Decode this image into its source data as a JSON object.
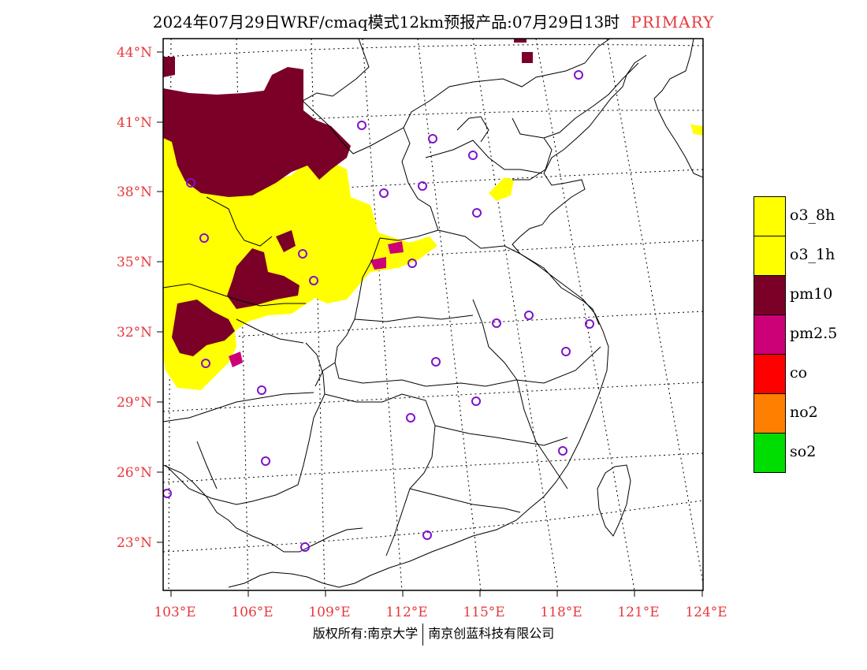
{
  "header": {
    "title": "2024年07月29日WRF/cmaq模式12km预报产品:07月29日13时",
    "tag": "PRIMARY"
  },
  "map": {
    "lat_labels": [
      "44°N",
      "41°N",
      "38°N",
      "35°N",
      "32°N",
      "29°N",
      "26°N",
      "23°N"
    ],
    "lon_labels": [
      "103°E",
      "106°E",
      "109°E",
      "112°E",
      "115°E",
      "118°E",
      "121°E",
      "124°E"
    ]
  },
  "legend": {
    "items": [
      {
        "label": "o3_8h",
        "color": "#ffff00"
      },
      {
        "label": "o3_1h",
        "color": "#ffff00"
      },
      {
        "label": "pm10",
        "color": "#7a0028"
      },
      {
        "label": "pm2.5",
        "color": "#cc0077"
      },
      {
        "label": "co",
        "color": "#ff0000"
      },
      {
        "label": "no2",
        "color": "#ff8000"
      },
      {
        "label": "so2",
        "color": "#00dd00"
      }
    ]
  },
  "footer": {
    "left": "版权所有:南京大学",
    "right": "南京创蓝科技有限公司"
  }
}
